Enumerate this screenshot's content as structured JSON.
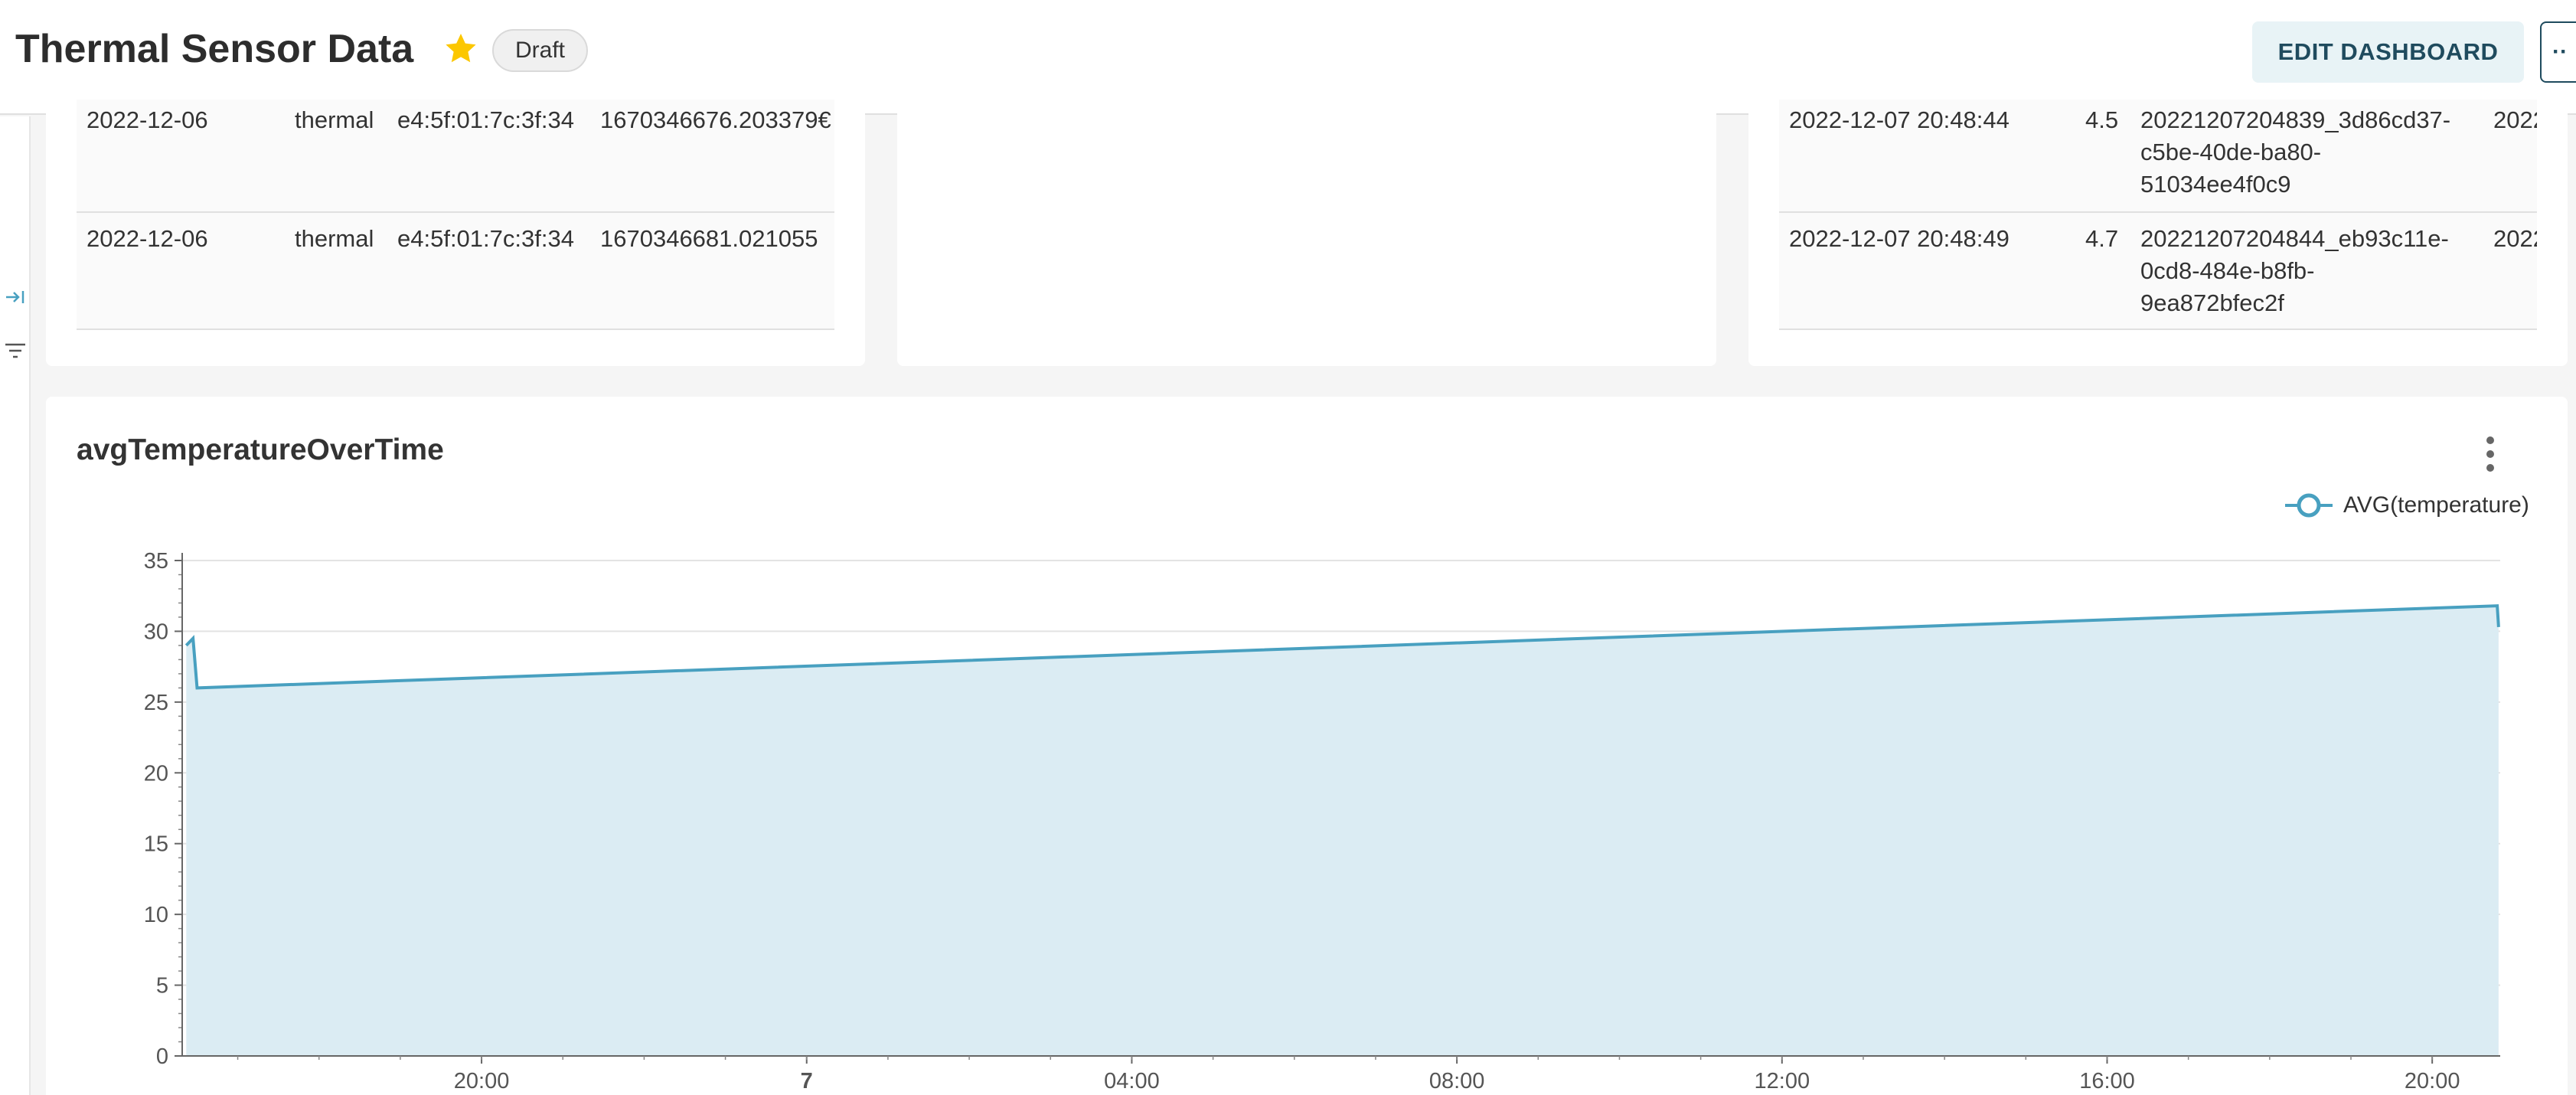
{
  "header": {
    "title": "Thermal Sensor Data",
    "badge": "Draft",
    "edit_label": "EDIT DASHBOARD",
    "more_label": "··"
  },
  "table_left": {
    "rows": [
      {
        "date": "2022-12-06",
        "type": "thermal",
        "mac": "e4:5f:01:7c:3f:34",
        "ts": "1670346676.203379€"
      },
      {
        "date": "2022-12-06",
        "type": "thermal",
        "mac": "e4:5f:01:7c:3f:34",
        "ts": "1670346681.021055"
      }
    ]
  },
  "table_right": {
    "rows": [
      {
        "time": "2022-12-07 20:48:44",
        "value": "4.5",
        "id_lines": [
          "20221207204839_3d86cd37-",
          "c5be-40de-ba80-",
          "51034ee4f0c9"
        ],
        "extra": "2022"
      },
      {
        "time": "2022-12-07 20:48:49",
        "value": "4.7",
        "id_lines": [
          "20221207204844_eb93c11e-",
          "0cd8-484e-b8fb-",
          "9ea872bfec2f"
        ],
        "extra": "2022"
      }
    ]
  },
  "chart": {
    "title": "avgTemperatureOverTime",
    "legend": "AVG(temperature)"
  },
  "chart_data": {
    "type": "area",
    "title": "avgTemperatureOverTime",
    "series": [
      {
        "name": "AVG(temperature)",
        "x": [
          "2022-12-06 16:22",
          "2022-12-06 16:27",
          "2022-12-06 16:30",
          "2022-12-07 20:48",
          "2022-12-07 20:49"
        ],
        "values": [
          29.0,
          29.5,
          26.0,
          31.8,
          30.3
        ]
      }
    ],
    "x_ticks": [
      "20:00",
      "7",
      "04:00",
      "08:00",
      "12:00",
      "16:00",
      "20:00"
    ],
    "y_ticks": [
      "0",
      "5",
      "10",
      "15",
      "20",
      "25",
      "30",
      "35"
    ],
    "ylim": [
      0,
      35
    ],
    "grid": true,
    "legend_position": "top-right",
    "color": "#48a0c0",
    "fill": "#dbecf3"
  }
}
